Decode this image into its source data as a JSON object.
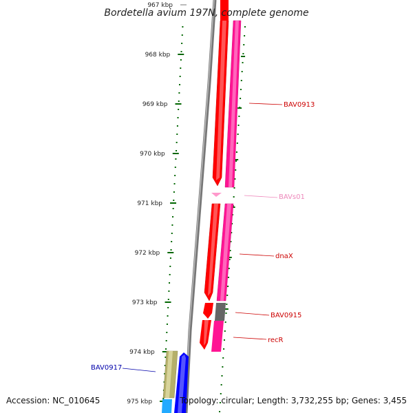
{
  "title": "Bordetella avium 197N, complete genome",
  "footer": {
    "accession": "Accession: NC_010645",
    "stats": "Topology: circular; Length: 3,732,255 bp; Genes: 3,455"
  },
  "scale_ticks": [
    {
      "label": "967 kbp",
      "kbp": 967,
      "faded": true
    },
    {
      "label": "968 kbp",
      "kbp": 968
    },
    {
      "label": "969 kbp",
      "kbp": 969
    },
    {
      "label": "970 kbp",
      "kbp": 970
    },
    {
      "label": "971 kbp",
      "kbp": 971
    },
    {
      "label": "972 kbp",
      "kbp": 972
    },
    {
      "label": "973 kbp",
      "kbp": 973
    },
    {
      "label": "974 kbp",
      "kbp": 974
    },
    {
      "label": "975 kbp",
      "kbp": 975
    }
  ],
  "genes": [
    {
      "label": "BAV0913",
      "color": "#cc0000",
      "feature_color": "#ff0000"
    },
    {
      "label": "BAVs01",
      "color": "#ee88bb",
      "feature_color": "#ff99cc"
    },
    {
      "label": "dnaX",
      "color": "#cc0000",
      "feature_color": "#ff0000"
    },
    {
      "label": "BAV0915",
      "color": "#cc0000",
      "feature_color": "#ff0000"
    },
    {
      "label": "recR",
      "color": "#cc0000",
      "feature_color": "#ff0000"
    },
    {
      "label": "BAV0917",
      "color": "#0000aa",
      "feature_color": "#0000ff"
    }
  ],
  "colors": {
    "cds": "#ff0000",
    "rna": "#ff1493",
    "pseudo": "#666666",
    "olive": "#b5b06a",
    "blue": "#0000ff",
    "cyan": "#22aaff",
    "backbone": "#888888",
    "tick": "#006600"
  }
}
